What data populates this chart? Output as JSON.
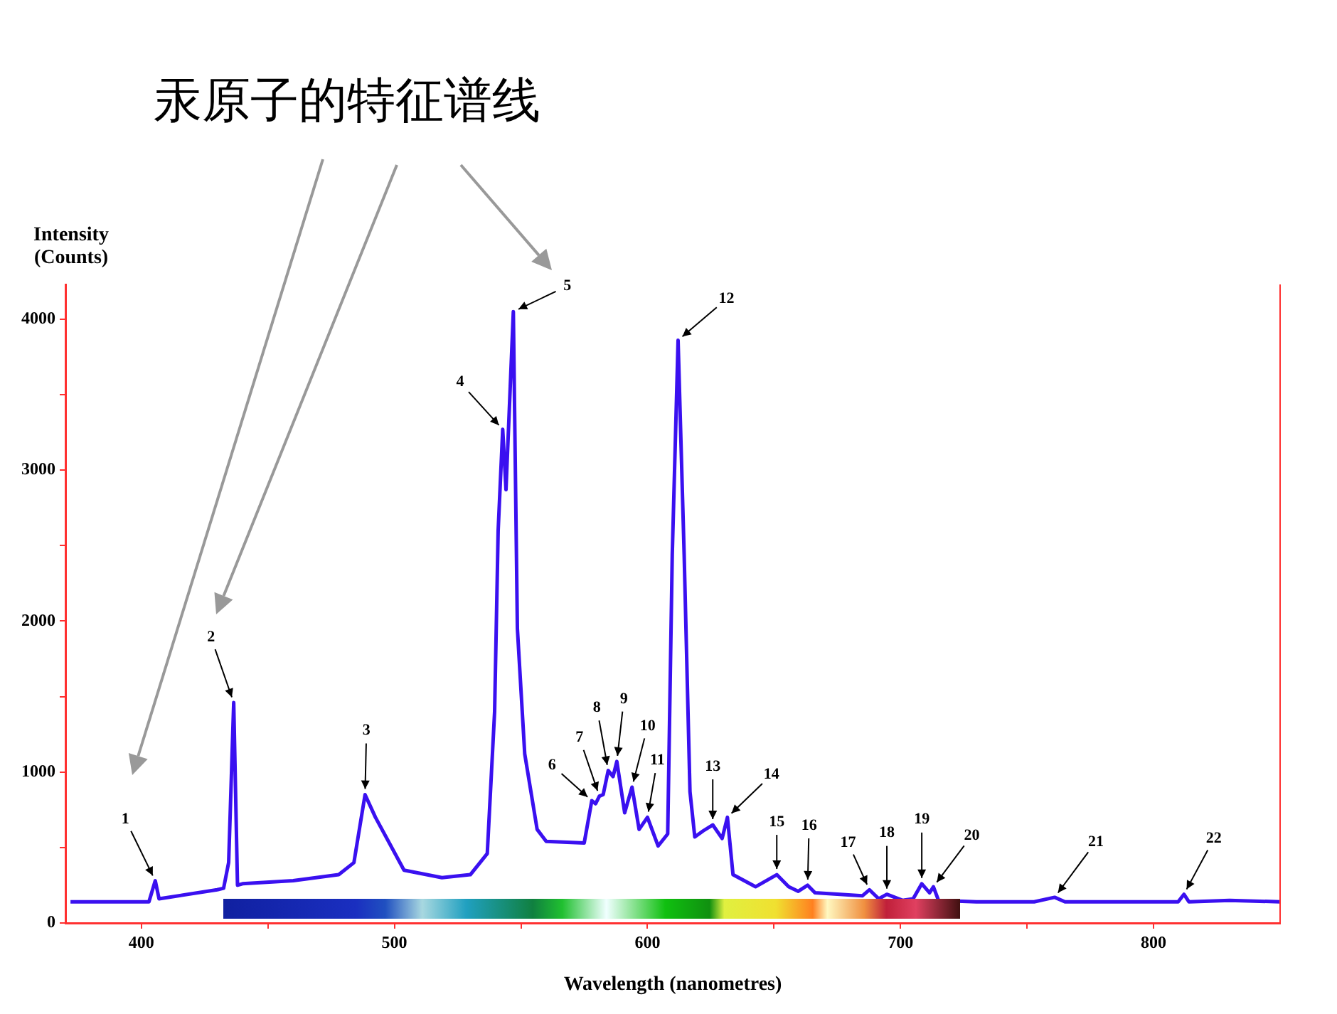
{
  "chart_data": {
    "type": "line",
    "title": "汞原子的特征谱线",
    "xlabel": "Wavelength (nanometres)",
    "ylabel": "Intensity (Counts)",
    "xlim": [
      370,
      850
    ],
    "ylim": [
      0,
      4230
    ],
    "xticks": [
      400,
      {
        "value": 450,
        "label": null
      },
      500,
      {
        "value": 550,
        "label": null
      },
      600,
      {
        "value": 650,
        "label": null
      },
      700,
      {
        "value": 750,
        "label": null
      },
      800
    ],
    "yticks": [
      0,
      {
        "value": 500,
        "label": null
      },
      1000,
      {
        "value": 1500,
        "label": null
      },
      2000,
      {
        "value": 2500,
        "label": null
      },
      3000,
      {
        "value": 3500,
        "label": null
      },
      4000
    ],
    "x": [
      372,
      403,
      405.5,
      407,
      430,
      432.5,
      434.5,
      436.5,
      438,
      440,
      460,
      478,
      484,
      488.4,
      492.5,
      503.8,
      518.8,
      530,
      536.7,
      539.6,
      541,
      542.8,
      544.1,
      547,
      548.6,
      551.5,
      556.4,
      560,
      575,
      578,
      579.5,
      581,
      582.5,
      584.5,
      586.4,
      587.9,
      591,
      593.9,
      596.7,
      600,
      604.2,
      608,
      609.8,
      612.1,
      614.5,
      616.8,
      618.7,
      622,
      625.8,
      629.5,
      631.6,
      633.8,
      642.7,
      651.1,
      655.8,
      659.6,
      663.3,
      666.2,
      684.9,
      687.7,
      691.4,
      694.6,
      700.8,
      705,
      708.4,
      711.5,
      713,
      715,
      730,
      752.8,
      760.9,
      765,
      800,
      809.7,
      812,
      814,
      830,
      850
    ],
    "series": [
      {
        "color": "#3a10f0",
        "values": [
          140,
          140,
          280,
          160,
          220,
          230,
          400,
          1460,
          250,
          260,
          280,
          320,
          400,
          850,
          700,
          350,
          300,
          320,
          460,
          1400,
          2600,
          3270,
          2870,
          4050,
          1950,
          1120,
          620,
          540,
          530,
          810,
          790,
          840,
          850,
          1010,
          970,
          1070,
          730,
          900,
          620,
          700,
          510,
          590,
          2440,
          3860,
          2440,
          870,
          570,
          610,
          650,
          560,
          700,
          320,
          240,
          320,
          240,
          210,
          250,
          200,
          180,
          220,
          160,
          190,
          150,
          160,
          260,
          200,
          240,
          150,
          140,
          140,
          170,
          140,
          140,
          140,
          190,
          140,
          150,
          140
        ]
      }
    ],
    "annotations": [
      {
        "text": "1",
        "x": 405.5,
        "y": 280
      },
      {
        "text": "2",
        "x": 436.5,
        "y": 1460
      },
      {
        "text": "3",
        "x": 488.4,
        "y": 850
      },
      {
        "text": "4",
        "x": 542.8,
        "y": 3270
      },
      {
        "text": "5",
        "x": 547,
        "y": 4050
      },
      {
        "text": "6",
        "x": 578,
        "y": 810
      },
      {
        "text": "7",
        "x": 581,
        "y": 840
      },
      {
        "text": "8",
        "x": 584.5,
        "y": 1010
      },
      {
        "text": "9",
        "x": 587.9,
        "y": 1070
      },
      {
        "text": "10",
        "x": 593.9,
        "y": 900
      },
      {
        "text": "11",
        "x": 600,
        "y": 700
      },
      {
        "text": "12",
        "x": 612.1,
        "y": 3860
      },
      {
        "text": "13",
        "x": 625.8,
        "y": 650
      },
      {
        "text": "14",
        "x": 631.6,
        "y": 700
      },
      {
        "text": "15",
        "x": 651.1,
        "y": 320
      },
      {
        "text": "16",
        "x": 663.3,
        "y": 250
      },
      {
        "text": "17",
        "x": 687.7,
        "y": 220
      },
      {
        "text": "18",
        "x": 694.6,
        "y": 190
      },
      {
        "text": "19",
        "x": 708.4,
        "y": 260
      },
      {
        "text": "20",
        "x": 713,
        "y": 240
      },
      {
        "text": "21",
        "x": 760.9,
        "y": 170
      },
      {
        "text": "22",
        "x": 812,
        "y": 190
      }
    ]
  }
}
